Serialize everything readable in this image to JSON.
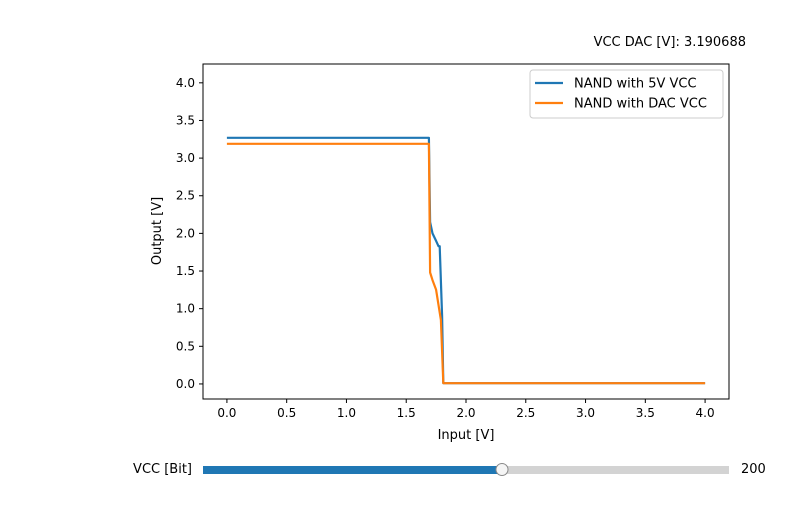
{
  "chart_data": {
    "type": "line",
    "title": "VCC DAC [V]: 3.190688",
    "xlabel": "Input [V]",
    "ylabel": "Output [V]",
    "xlim": [
      -0.2,
      4.2
    ],
    "ylim": [
      -0.2,
      4.25
    ],
    "xticks": [
      "0.0",
      "0.5",
      "1.0",
      "1.5",
      "2.0",
      "2.5",
      "3.0",
      "3.5",
      "4.0"
    ],
    "yticks": [
      "0.0",
      "0.5",
      "1.0",
      "1.5",
      "2.0",
      "2.5",
      "3.0",
      "3.5",
      "4.0"
    ],
    "legend_position": "top-right",
    "grid": false,
    "series": [
      {
        "name": "NAND with 5V VCC",
        "color": "#1f77b4",
        "x": [
          0.0,
          1.69,
          1.7,
          1.72,
          1.75,
          1.77,
          1.78,
          1.8,
          1.81,
          4.0
        ],
        "y": [
          3.27,
          3.27,
          2.15,
          2.0,
          1.9,
          1.83,
          1.83,
          0.9,
          0.01,
          0.01
        ]
      },
      {
        "name": "NAND with DAC VCC",
        "color": "#ff7f0e",
        "x": [
          0.0,
          1.69,
          1.7,
          1.72,
          1.75,
          1.77,
          1.79,
          1.81,
          4.0
        ],
        "y": [
          3.19,
          3.19,
          1.48,
          1.38,
          1.25,
          1.05,
          0.85,
          0.01,
          0.01
        ]
      }
    ]
  },
  "slider": {
    "label": "VCC [Bit]",
    "value": "200",
    "fraction": 0.568,
    "fill_color": "#1f77b4"
  }
}
